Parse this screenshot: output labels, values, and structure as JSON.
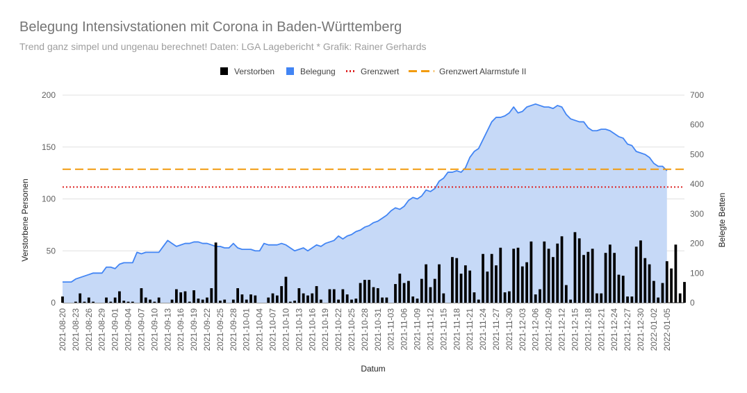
{
  "title": "Belegung Intensivstationen mit Corona in Baden-Württemberg",
  "subtitle": "Trend ganz simpel und ungenau berechnet! Daten: LGA Lagebericht * Grafik: Rainer Gerhards",
  "colors": {
    "belegung_line": "#4285f4",
    "belegung_fill": "#c6d9f7",
    "verstorben": "#000000",
    "grenzwert": "#dd2222",
    "alarmstufe": "#f29b0f",
    "grid": "#e0e0e0",
    "axis_text": "#616161"
  },
  "chart_data": {
    "type": "bar+area",
    "title": "Belegung Intensivstationen mit Corona in Baden-Württemberg",
    "subtitle": "Trend ganz simpel und ungenau berechnet! Daten: LGA Lagebericht * Grafik: Rainer Gerhards",
    "xlabel": "Datum",
    "ylabel_left": "Verstorbene Personen",
    "ylabel_right": "Belegte Betten",
    "ylim_left": [
      0,
      200
    ],
    "ylim_right": [
      0,
      700
    ],
    "yticks_left": [
      "0",
      "50",
      "100",
      "150",
      "200"
    ],
    "yticks_right": [
      "0",
      "100",
      "200",
      "300",
      "400",
      "500",
      "600",
      "700"
    ],
    "grid": true,
    "legend_position": "top",
    "legend": [
      {
        "name": "Verstorben",
        "symbol": "square",
        "color": "#000000"
      },
      {
        "name": "Belegung",
        "symbol": "square",
        "color": "#4285f4"
      },
      {
        "name": "Grenzwert",
        "symbol": "dotted-line",
        "color": "#dd2222"
      },
      {
        "name": "Grenzwert Alarmstufe II",
        "symbol": "dashed-line",
        "color": "#f29b0f"
      }
    ],
    "x_start_date": "2021-08-20",
    "x_tick_labels": [
      "2021-08-20",
      "2021-08-23",
      "2021-08-26",
      "2021-08-29",
      "2021-09-01",
      "2021-09-04",
      "2021-09-07",
      "2021-09-10",
      "2021-09-13",
      "2021-09-16",
      "2021-09-19",
      "2021-09-22",
      "2021-09-25",
      "2021-09-28",
      "2021-10-01",
      "2021-10-04",
      "2021-10-07",
      "2021-10-10",
      "2021-10-13",
      "2021-10-16",
      "2021-10-19",
      "2021-10-22",
      "2021-10-25",
      "2021-10-28",
      "2021-10-31",
      "2021-11-03",
      "2021-11-06",
      "2021-11-09",
      "2021-11-12",
      "2021-11-15",
      "2021-11-18",
      "2021-11-21",
      "2021-11-24",
      "2021-11-27",
      "2021-11-30",
      "2021-12-03",
      "2021-12-06",
      "2021-12-09",
      "2021-12-12",
      "2021-12-15",
      "2021-12-18",
      "2021-12-21",
      "2021-12-24",
      "2021-12-27",
      "2021-12-30",
      "2022-01-02",
      "2022-01-05"
    ],
    "grenzwert_betten": 390,
    "grenzwert_alarmstufe_betten": 450,
    "series": [
      {
        "name": "Verstorben",
        "axis": "left",
        "type": "bar",
        "values": [
          6,
          0,
          0,
          1,
          9,
          1,
          5,
          1,
          0,
          0,
          5,
          1,
          5,
          11,
          2,
          1,
          1,
          0,
          14,
          5,
          3,
          1,
          5,
          0,
          0,
          3,
          13,
          10,
          11,
          1,
          12,
          4,
          3,
          5,
          14,
          58,
          2,
          3,
          0,
          3,
          14,
          8,
          3,
          8,
          7,
          0,
          0,
          5,
          9,
          7,
          16,
          25,
          1,
          2,
          14,
          9,
          7,
          9,
          16,
          3,
          0,
          13,
          13,
          3,
          13,
          8,
          3,
          4,
          19,
          22,
          22,
          15,
          14,
          5,
          5,
          0,
          18,
          28,
          19,
          21,
          6,
          4,
          23,
          37,
          15,
          23,
          37,
          9,
          0,
          44,
          43,
          28,
          36,
          31,
          10,
          3,
          47,
          30,
          47,
          36,
          53,
          10,
          11,
          52,
          53,
          35,
          39,
          59,
          8,
          13,
          59,
          52,
          44,
          57,
          64,
          17,
          3,
          68,
          62,
          46,
          49,
          52,
          9,
          9,
          48,
          56,
          48,
          27,
          26,
          6,
          6,
          54,
          60,
          43,
          37,
          21,
          5,
          19,
          40,
          33,
          56,
          9,
          20
        ]
      },
      {
        "name": "Belegung",
        "axis": "right",
        "type": "area",
        "values": [
          70,
          70,
          70,
          80,
          85,
          90,
          95,
          100,
          100,
          100,
          120,
          120,
          115,
          130,
          135,
          135,
          135,
          170,
          165,
          170,
          170,
          170,
          170,
          190,
          210,
          200,
          190,
          195,
          200,
          200,
          205,
          205,
          200,
          200,
          195,
          190,
          190,
          185,
          185,
          200,
          185,
          180,
          180,
          180,
          175,
          175,
          200,
          195,
          195,
          195,
          200,
          195,
          185,
          175,
          180,
          185,
          175,
          185,
          195,
          190,
          200,
          205,
          210,
          225,
          215,
          225,
          230,
          240,
          245,
          255,
          260,
          270,
          275,
          285,
          295,
          310,
          320,
          315,
          325,
          345,
          355,
          350,
          360,
          380,
          375,
          385,
          410,
          420,
          440,
          440,
          445,
          440,
          455,
          490,
          510,
          520,
          550,
          580,
          610,
          625,
          625,
          630,
          640,
          660,
          640,
          645,
          660,
          665,
          670,
          665,
          660,
          660,
          655,
          665,
          660,
          635,
          620,
          615,
          610,
          610,
          590,
          580,
          580,
          585,
          585,
          580,
          570,
          560,
          555,
          535,
          530,
          510,
          505,
          500,
          490,
          470,
          460,
          460,
          445
        ]
      }
    ]
  }
}
